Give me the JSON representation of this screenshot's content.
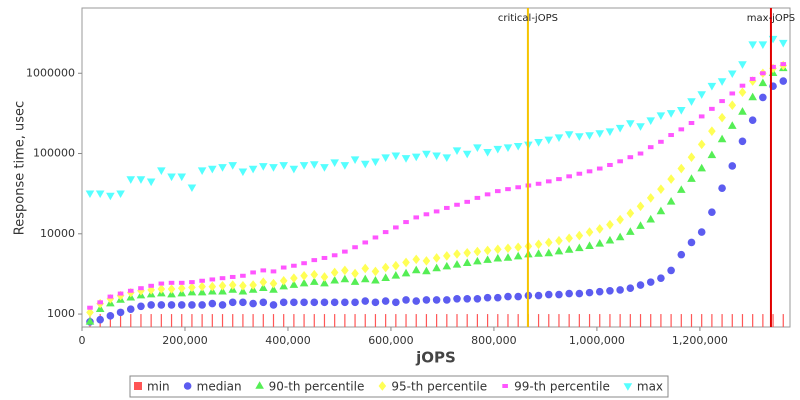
{
  "chart_data": {
    "type": "scatter",
    "x_label": "jOPS",
    "y_label": "Response time, usec",
    "log_y": true,
    "xlim": [
      0,
      1375000
    ],
    "ylim": [
      690,
      6500000
    ],
    "xticks": [
      {
        "value": 0,
        "label": "0"
      },
      {
        "value": 200000,
        "label": "200,000"
      },
      {
        "value": 400000,
        "label": "400,000"
      },
      {
        "value": 600000,
        "label": "600,000"
      },
      {
        "value": 800000,
        "label": "800,000"
      },
      {
        "value": 1000000,
        "label": "1,000,000"
      },
      {
        "value": 1200000,
        "label": "1,200,000"
      }
    ],
    "yticks": [
      1000,
      10000,
      100000,
      1000000
    ],
    "legend": "bottom",
    "annotations": [
      {
        "label": "critical-jOPS",
        "x": 866000,
        "color": "#f5c400"
      },
      {
        "label": "max-jOPS",
        "x": 1338000,
        "color": "#e00000"
      }
    ],
    "x": [
      15500,
      35300,
      55100,
      74900,
      94700,
      114500,
      134300,
      154100,
      173900,
      193700,
      213500,
      233300,
      253100,
      272900,
      292700,
      312500,
      332300,
      352100,
      371900,
      391700,
      411500,
      431300,
      451100,
      470900,
      490700,
      510500,
      530300,
      550100,
      569900,
      589700,
      609500,
      629300,
      649100,
      668900,
      688700,
      708500,
      728300,
      748100,
      767900,
      787700,
      807500,
      827300,
      847100,
      866900,
      886700,
      906500,
      926300,
      946100,
      965900,
      985700,
      1005500,
      1025300,
      1045100,
      1064900,
      1084700,
      1104500,
      1124300,
      1144100,
      1163900,
      1183700,
      1203500,
      1223300,
      1243100,
      1262900,
      1282700,
      1302500,
      1322300,
      1342100,
      1361900
    ],
    "series": [
      {
        "name": "min",
        "color": "#ff5555",
        "marker": "tick",
        "values": [
          1000,
          1000,
          1000,
          1000,
          1000,
          1000,
          1000,
          1000,
          1000,
          1000,
          1000,
          1000,
          1000,
          1000,
          1000,
          1000,
          1000,
          1000,
          1000,
          1000,
          1000,
          1000,
          1000,
          1000,
          1000,
          1000,
          1000,
          1000,
          1000,
          1000,
          1000,
          1000,
          1000,
          1000,
          1000,
          1000,
          1000,
          1000,
          1000,
          1000,
          1000,
          1000,
          1000,
          1000,
          1000,
          1000,
          1000,
          1000,
          1000,
          1000,
          1000,
          1000,
          1000,
          1000,
          1000,
          1000,
          1000,
          1000,
          1000,
          1000,
          1000,
          1000,
          1000,
          1000,
          1000,
          1000,
          1000,
          1000,
          1000
        ]
      },
      {
        "name": "median",
        "color": "#5c5cf0",
        "marker": "circle",
        "values": [
          800,
          850,
          950,
          1050,
          1150,
          1250,
          1300,
          1300,
          1300,
          1300,
          1300,
          1300,
          1350,
          1300,
          1400,
          1400,
          1350,
          1400,
          1300,
          1400,
          1400,
          1400,
          1400,
          1400,
          1400,
          1400,
          1400,
          1450,
          1400,
          1450,
          1400,
          1500,
          1450,
          1500,
          1500,
          1500,
          1550,
          1550,
          1550,
          1600,
          1600,
          1650,
          1650,
          1700,
          1700,
          1750,
          1750,
          1800,
          1800,
          1850,
          1900,
          1950,
          2000,
          2100,
          2300,
          2500,
          2800,
          3500,
          5500,
          7800,
          10500,
          18600,
          37000,
          70000,
          142000,
          260000,
          500000,
          690000,
          800000
        ]
      },
      {
        "name": "90-th percentile",
        "color": "#55ee55",
        "marker": "triangle-up",
        "values": [
          800,
          1150,
          1350,
          1500,
          1600,
          1700,
          1750,
          1800,
          1750,
          1800,
          1850,
          1850,
          1900,
          1900,
          2000,
          1900,
          2000,
          2100,
          2000,
          2200,
          2300,
          2400,
          2500,
          2400,
          2600,
          2700,
          2500,
          2700,
          2600,
          2800,
          3000,
          3200,
          3500,
          3400,
          3700,
          3900,
          4100,
          4300,
          4500,
          4700,
          4900,
          5000,
          5200,
          5500,
          5600,
          5700,
          6000,
          6300,
          6600,
          7000,
          7500,
          8200,
          9000,
          10500,
          12500,
          15000,
          19000,
          25000,
          35000,
          48000,
          65000,
          95000,
          150000,
          220000,
          330000,
          500000,
          750000,
          1000000,
          1150000
        ]
      },
      {
        "name": "95-th percentile",
        "color": "#ffff55",
        "marker": "diamond",
        "values": [
          1050,
          1350,
          1550,
          1700,
          1850,
          1950,
          2000,
          2050,
          2050,
          2100,
          2150,
          2200,
          2200,
          2250,
          2300,
          2250,
          2300,
          2500,
          2400,
          2600,
          2800,
          3000,
          3100,
          2900,
          3300,
          3500,
          3200,
          3700,
          3400,
          3800,
          4000,
          4400,
          4800,
          4600,
          5000,
          5300,
          5600,
          5800,
          6000,
          6200,
          6400,
          6600,
          6800,
          7000,
          7400,
          7800,
          8200,
          8800,
          9500,
          10500,
          11500,
          13000,
          15000,
          18000,
          22000,
          28000,
          36000,
          48000,
          65000,
          90000,
          130000,
          190000,
          280000,
          400000,
          580000,
          800000,
          1000000,
          1150000,
          1250000
        ]
      },
      {
        "name": "99-th percentile",
        "color": "#ff55ff",
        "marker": "square",
        "values": [
          1200,
          1400,
          1650,
          1800,
          1950,
          2100,
          2250,
          2400,
          2450,
          2450,
          2500,
          2600,
          2700,
          2800,
          2900,
          3000,
          3300,
          3500,
          3400,
          3800,
          4000,
          4300,
          4700,
          5000,
          5400,
          6000,
          6800,
          7800,
          9000,
          10500,
          12000,
          14000,
          16000,
          17500,
          19000,
          21000,
          23000,
          25000,
          28000,
          31000,
          34000,
          36000,
          38000,
          40000,
          42000,
          45000,
          48000,
          52000,
          56000,
          60000,
          65000,
          72000,
          80000,
          90000,
          100000,
          120000,
          140000,
          170000,
          200000,
          240000,
          290000,
          360000,
          450000,
          560000,
          700000,
          850000,
          1000000,
          1200000,
          1300000
        ]
      },
      {
        "name": "max",
        "color": "#55ffff",
        "marker": "triangle-down",
        "values": [
          32000,
          32000,
          30000,
          32000,
          48000,
          48000,
          45000,
          62000,
          52000,
          52000,
          38000,
          62000,
          65000,
          68000,
          72000,
          60000,
          65000,
          70000,
          68000,
          72000,
          65000,
          72000,
          74000,
          68000,
          78000,
          72000,
          85000,
          75000,
          80000,
          90000,
          95000,
          88000,
          92000,
          100000,
          95000,
          90000,
          110000,
          100000,
          120000,
          105000,
          115000,
          120000,
          125000,
          130000,
          140000,
          150000,
          160000,
          175000,
          165000,
          170000,
          180000,
          190000,
          210000,
          240000,
          220000,
          260000,
          300000,
          320000,
          350000,
          450000,
          550000,
          700000,
          800000,
          1000000,
          1300000,
          2300000,
          2300000,
          2700000,
          2400000
        ]
      }
    ]
  }
}
